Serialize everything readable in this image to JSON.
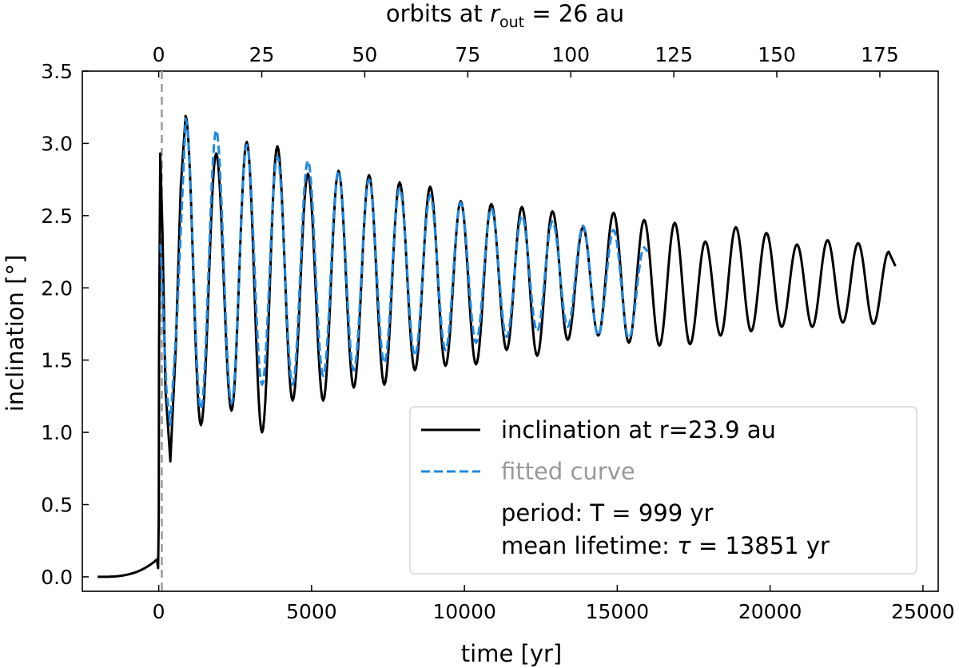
{
  "chart_data": {
    "type": "line",
    "xlabel": "time [yr]",
    "ylabel": "inclination [°]",
    "top_axis_label_prefix": "orbits at ",
    "top_axis_label_var": "r",
    "top_axis_label_sub": "out",
    "top_axis_label_suffix": " = 26 au",
    "xlim": [
      -2500,
      25500
    ],
    "ylim": [
      -0.1,
      3.5
    ],
    "xticks": [
      0,
      5000,
      10000,
      15000,
      20000,
      25000
    ],
    "xtick_labels": [
      "0",
      "5000",
      "10000",
      "15000",
      "20000",
      "25000"
    ],
    "yticks": [
      0.0,
      0.5,
      1.0,
      1.5,
      2.0,
      2.5,
      3.0,
      3.5
    ],
    "ytick_labels": [
      "0.0",
      "0.5",
      "1.0",
      "1.5",
      "2.0",
      "2.5",
      "3.0",
      "3.5"
    ],
    "top_ticks_time": [
      0,
      3370,
      6740,
      10110,
      13480,
      16850,
      20220,
      23590
    ],
    "top_tick_labels": [
      "0",
      "25",
      "50",
      "75",
      "100",
      "125",
      "150",
      "175"
    ],
    "vline": {
      "x": 100,
      "color": "#999999",
      "style": "dashed"
    },
    "series": [
      {
        "name": "inclination at r=23.9 au",
        "color": "#000000",
        "style": "solid",
        "model": "damped_sine",
        "pre_event": {
          "start": -2000,
          "end": -60,
          "start_value": 0.0,
          "end_value": 0.12,
          "dip_to": 0.06,
          "jump_at": 0
        },
        "first_peak": {
          "time": 50,
          "value": 2.93
        },
        "first_trough": {
          "time": 380,
          "value": 0.8
        },
        "offset": 2.02,
        "amplitude": 1.16,
        "period": 999,
        "tau": 13851,
        "peak_time": 880,
        "x_end": 24000,
        "extrema": [
          [
            880,
            3.19
          ],
          [
            1380,
            1.05
          ],
          [
            1880,
            2.93
          ],
          [
            2380,
            1.15
          ],
          [
            2880,
            3.01
          ],
          [
            3380,
            1.0
          ],
          [
            3880,
            2.98
          ],
          [
            4380,
            1.22
          ],
          [
            4880,
            2.79
          ],
          [
            5380,
            1.22
          ],
          [
            5880,
            2.81
          ],
          [
            6380,
            1.31
          ],
          [
            6880,
            2.78
          ],
          [
            7380,
            1.33
          ],
          [
            7880,
            2.73
          ],
          [
            8380,
            1.43
          ],
          [
            8880,
            2.7
          ],
          [
            9380,
            1.46
          ],
          [
            9880,
            2.6
          ],
          [
            10380,
            1.47
          ],
          [
            10880,
            2.58
          ],
          [
            11380,
            1.57
          ],
          [
            11880,
            2.56
          ],
          [
            12380,
            1.53
          ],
          [
            12880,
            2.53
          ],
          [
            13380,
            1.64
          ],
          [
            13880,
            2.42
          ],
          [
            14380,
            1.67
          ],
          [
            14880,
            2.52
          ],
          [
            15380,
            1.62
          ],
          [
            15880,
            2.47
          ],
          [
            16380,
            1.6
          ],
          [
            16880,
            2.45
          ],
          [
            17380,
            1.61
          ],
          [
            17880,
            2.32
          ],
          [
            18380,
            1.67
          ],
          [
            18880,
            2.42
          ],
          [
            19380,
            1.7
          ],
          [
            19880,
            2.38
          ],
          [
            20380,
            1.73
          ],
          [
            20880,
            2.3
          ],
          [
            21380,
            1.73
          ],
          [
            21880,
            2.33
          ],
          [
            22380,
            1.76
          ],
          [
            22880,
            2.31
          ],
          [
            23380,
            1.75
          ],
          [
            23880,
            2.25
          ]
        ],
        "end_value": 2.15
      },
      {
        "name": "fitted curve",
        "color": "#1e88e5",
        "style": "dashed",
        "model": "damped_sine",
        "offset": 2.05,
        "amplitude": 1.15,
        "period": 1000,
        "tau": 13851,
        "peak_time": 880,
        "x_start": 60,
        "x_end": 16000,
        "extrema": [
          [
            880,
            3.17
          ],
          [
            1380,
            1.16
          ],
          [
            1880,
            3.09
          ],
          [
            2380,
            1.2
          ],
          [
            2880,
            2.99
          ],
          [
            3380,
            1.33
          ],
          [
            3880,
            2.91
          ],
          [
            4380,
            1.33
          ],
          [
            4880,
            2.88
          ],
          [
            5380,
            1.39
          ],
          [
            5880,
            2.81
          ],
          [
            6380,
            1.43
          ],
          [
            6880,
            2.75
          ],
          [
            7380,
            1.48
          ],
          [
            7880,
            2.69
          ],
          [
            8380,
            1.53
          ],
          [
            8880,
            2.64
          ],
          [
            9380,
            1.57
          ],
          [
            9880,
            2.59
          ],
          [
            10380,
            1.62
          ],
          [
            10880,
            2.55
          ],
          [
            11380,
            1.66
          ],
          [
            11880,
            2.5
          ],
          [
            12380,
            1.7
          ],
          [
            12880,
            2.46
          ],
          [
            13380,
            1.73
          ],
          [
            13880,
            2.43
          ],
          [
            14380,
            1.67
          ],
          [
            14880,
            2.4
          ],
          [
            15380,
            1.65
          ],
          [
            15880,
            2.28
          ]
        ]
      }
    ],
    "legend": {
      "placement": "lower-right",
      "entries": [
        {
          "label": "inclination at r=23.9 au",
          "color": "#000000",
          "style": "solid"
        },
        {
          "label": "fitted curve",
          "color": "#1e88e5",
          "style": "dashed"
        }
      ],
      "notes": [
        {
          "prefix": "period: ",
          "symbol": "T",
          "value": " = 999 yr"
        },
        {
          "prefix": "mean lifetime: ",
          "symbol": "τ",
          "value": " = 13851 yr"
        }
      ]
    }
  }
}
